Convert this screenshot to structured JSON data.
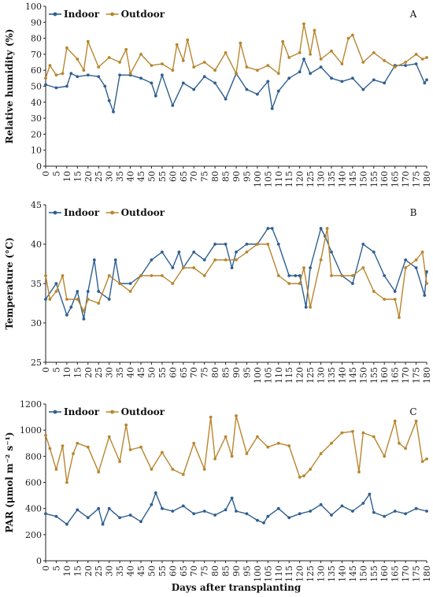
{
  "chart_data": [
    {
      "type": "line",
      "panel_label": "A",
      "ylabel": "Relative humidity (%)",
      "xlabel": "",
      "ylim": [
        0,
        100
      ],
      "yticks": [
        0,
        10,
        20,
        30,
        40,
        50,
        60,
        70,
        80,
        90,
        100
      ],
      "xlim": [
        0,
        180
      ],
      "xticks": [
        0,
        5,
        10,
        15,
        20,
        25,
        30,
        35,
        40,
        45,
        50,
        55,
        60,
        65,
        70,
        75,
        80,
        85,
        90,
        95,
        100,
        105,
        110,
        115,
        120,
        125,
        130,
        135,
        140,
        145,
        150,
        155,
        160,
        165,
        170,
        175,
        180
      ],
      "legend_position": "top-left",
      "series": [
        {
          "name": "Indoor",
          "color": "#2f5f8f",
          "x": [
            0,
            5,
            10,
            12,
            15,
            20,
            25,
            28,
            30,
            32,
            35,
            40,
            45,
            50,
            52,
            55,
            60,
            65,
            70,
            75,
            80,
            85,
            90,
            95,
            100,
            105,
            107,
            110,
            115,
            120,
            122,
            125,
            130,
            135,
            140,
            145,
            150,
            155,
            160,
            165,
            170,
            175,
            179,
            180
          ],
          "values": [
            51,
            49,
            50,
            58,
            56,
            57,
            56,
            50,
            41,
            34,
            57,
            57,
            55,
            52,
            44,
            57,
            38,
            52,
            48,
            56,
            52,
            42,
            58,
            48,
            45,
            53,
            36,
            47,
            55,
            59,
            67,
            58,
            62,
            55,
            53,
            55,
            48,
            54,
            52,
            63,
            63,
            64,
            52,
            54
          ]
        },
        {
          "name": "Outdoor",
          "color": "#b8862e",
          "x": [
            0,
            2,
            5,
            8,
            10,
            15,
            18,
            20,
            25,
            30,
            35,
            38,
            40,
            45,
            50,
            55,
            60,
            62,
            65,
            67,
            70,
            75,
            80,
            85,
            90,
            92,
            95,
            100,
            105,
            110,
            112,
            115,
            120,
            122,
            125,
            127,
            130,
            135,
            140,
            143,
            145,
            150,
            155,
            160,
            165,
            170,
            175,
            178,
            180
          ],
          "values": [
            55,
            63,
            57,
            58,
            74,
            67,
            60,
            78,
            62,
            68,
            65,
            73,
            58,
            70,
            63,
            64,
            60,
            76,
            66,
            79,
            62,
            65,
            60,
            71,
            58,
            77,
            62,
            60,
            63,
            58,
            78,
            68,
            71,
            89,
            70,
            85,
            67,
            72,
            64,
            80,
            82,
            65,
            71,
            66,
            62,
            65,
            70,
            67,
            68
          ]
        }
      ]
    },
    {
      "type": "line",
      "panel_label": "B",
      "ylabel": "Temperature (°C)",
      "xlabel": "",
      "ylim": [
        25,
        45
      ],
      "yticks": [
        25,
        30,
        35,
        40,
        45
      ],
      "xlim": [
        0,
        180
      ],
      "xticks": [
        0,
        5,
        10,
        15,
        20,
        25,
        30,
        35,
        40,
        45,
        50,
        55,
        60,
        65,
        70,
        75,
        80,
        85,
        90,
        95,
        100,
        105,
        110,
        115,
        120,
        125,
        130,
        135,
        140,
        145,
        150,
        155,
        160,
        165,
        170,
        175,
        180
      ],
      "legend_position": "top-left",
      "series": [
        {
          "name": "Indoor",
          "color": "#2f5f8f",
          "x": [
            0,
            5,
            10,
            12,
            15,
            18,
            20,
            23,
            25,
            30,
            33,
            35,
            40,
            45,
            50,
            55,
            60,
            63,
            65,
            70,
            75,
            80,
            85,
            88,
            90,
            95,
            100,
            105,
            107,
            110,
            115,
            118,
            120,
            123,
            125,
            130,
            132,
            135,
            140,
            145,
            150,
            155,
            160,
            165,
            170,
            175,
            179,
            180
          ],
          "values": [
            33,
            35,
            31,
            32,
            34,
            30.5,
            34,
            38,
            34,
            33,
            38,
            35,
            35,
            36,
            38,
            39,
            37,
            39,
            37,
            39,
            38,
            40,
            40,
            37,
            39,
            40,
            40,
            42,
            42,
            40,
            36,
            36,
            36,
            32,
            37,
            42,
            41,
            39,
            36,
            35,
            40,
            39,
            36,
            34,
            38,
            37,
            33.5,
            36.5
          ]
        },
        {
          "name": "Outdoor",
          "color": "#b8862e",
          "x": [
            0,
            2,
            5,
            8,
            10,
            15,
            18,
            20,
            25,
            30,
            35,
            40,
            45,
            50,
            55,
            60,
            65,
            70,
            75,
            80,
            85,
            90,
            95,
            100,
            105,
            110,
            115,
            120,
            122,
            125,
            130,
            133,
            135,
            140,
            145,
            150,
            155,
            160,
            165,
            167,
            170,
            175,
            178,
            180
          ],
          "values": [
            36,
            33,
            34,
            36,
            33,
            33,
            31.5,
            33,
            32.5,
            36,
            35,
            34,
            36,
            36,
            36,
            35,
            37,
            37,
            36,
            38,
            38,
            38,
            39,
            40,
            40,
            36,
            35,
            35,
            37,
            32,
            38,
            42,
            36,
            36,
            36,
            37,
            34,
            33,
            33,
            30.7,
            37,
            38,
            39,
            35
          ]
        }
      ]
    },
    {
      "type": "line",
      "panel_label": "C",
      "ylabel": "PAR (μmol m⁻² s⁻¹)",
      "xlabel": "Days after transplanting",
      "ylim": [
        0,
        1200
      ],
      "yticks": [
        0,
        200,
        400,
        600,
        800,
        1000,
        1200
      ],
      "xlim": [
        0,
        180
      ],
      "xticks": [
        0,
        5,
        10,
        15,
        20,
        25,
        30,
        35,
        40,
        45,
        50,
        55,
        60,
        65,
        70,
        75,
        80,
        85,
        90,
        95,
        100,
        105,
        110,
        115,
        120,
        125,
        130,
        135,
        140,
        145,
        150,
        155,
        160,
        165,
        170,
        175,
        180
      ],
      "legend_position": "top-left",
      "series": [
        {
          "name": "Indoor",
          "color": "#2f5f8f",
          "x": [
            0,
            5,
            10,
            15,
            20,
            25,
            27,
            30,
            35,
            40,
            45,
            50,
            52,
            55,
            60,
            65,
            70,
            75,
            80,
            85,
            88,
            90,
            95,
            100,
            103,
            105,
            110,
            115,
            120,
            125,
            130,
            135,
            140,
            145,
            150,
            153,
            155,
            160,
            165,
            170,
            175,
            180
          ],
          "values": [
            360,
            340,
            280,
            390,
            330,
            400,
            280,
            400,
            330,
            350,
            300,
            430,
            520,
            400,
            380,
            420,
            360,
            380,
            350,
            390,
            480,
            380,
            360,
            310,
            290,
            340,
            400,
            330,
            360,
            380,
            430,
            350,
            420,
            380,
            440,
            510,
            370,
            340,
            380,
            360,
            400,
            380
          ]
        },
        {
          "name": "Outdoor",
          "color": "#b8862e",
          "x": [
            0,
            2,
            5,
            8,
            10,
            13,
            15,
            20,
            25,
            30,
            35,
            38,
            40,
            45,
            50,
            55,
            60,
            65,
            70,
            75,
            78,
            80,
            85,
            88,
            90,
            95,
            100,
            105,
            110,
            115,
            120,
            122,
            125,
            130,
            135,
            140,
            145,
            148,
            150,
            155,
            160,
            165,
            167,
            170,
            175,
            178,
            180
          ],
          "values": [
            960,
            860,
            700,
            880,
            600,
            820,
            900,
            870,
            680,
            950,
            760,
            1040,
            850,
            870,
            700,
            830,
            700,
            660,
            900,
            700,
            1100,
            780,
            950,
            800,
            1110,
            820,
            950,
            870,
            900,
            880,
            640,
            650,
            700,
            820,
            900,
            980,
            990,
            680,
            980,
            950,
            800,
            1070,
            900,
            860,
            1070,
            760,
            780
          ]
        }
      ]
    }
  ]
}
